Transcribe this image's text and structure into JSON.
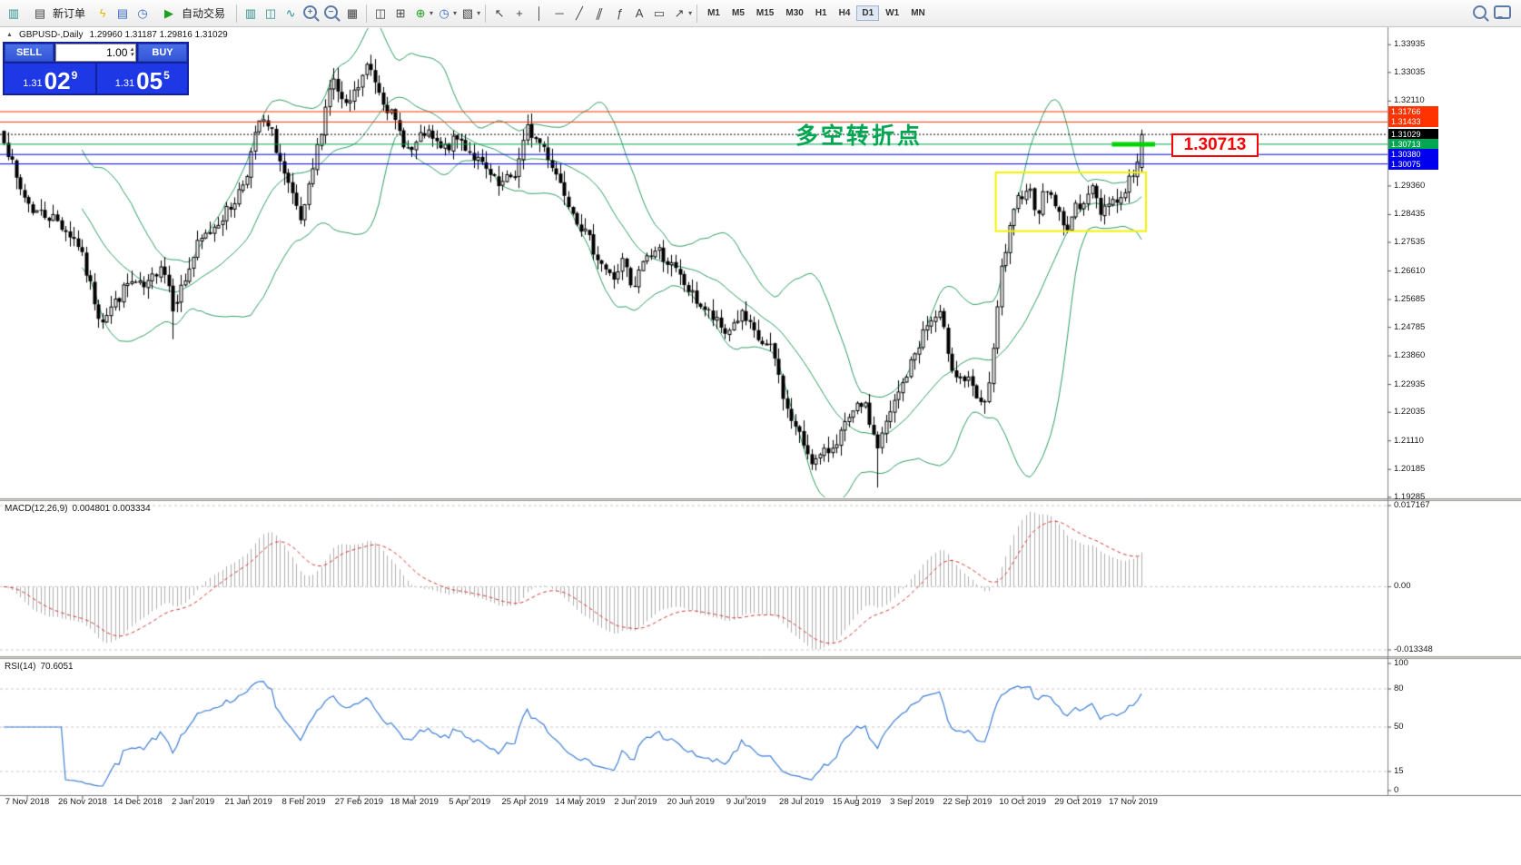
{
  "toolbar": {
    "new_order": "新订单",
    "auto_trading": "自动交易",
    "timeframes": [
      "M1",
      "M5",
      "M15",
      "M30",
      "H1",
      "H4",
      "D1",
      "W1",
      "MN"
    ],
    "active_timeframe": "D1"
  },
  "header": {
    "symbol": "GBPUSD-,Daily",
    "ohlc": "1.29960 1.31187 1.29816 1.31029"
  },
  "trade_panel": {
    "sell_label": "SELL",
    "buy_label": "BUY",
    "volume": "1.00",
    "sell_price": {
      "prefix": "1.31",
      "big": "02",
      "sup": "9"
    },
    "buy_price": {
      "prefix": "1.31",
      "big": "05",
      "sup": "5"
    }
  },
  "annotation": {
    "text": "多空转折点",
    "color": "#00a651"
  },
  "callout": {
    "text": "1.30713",
    "color": "#ff0000"
  },
  "price_axis": {
    "ticks": [
      "1.33935",
      "1.33035",
      "1.32110",
      "1.29360",
      "1.28435",
      "1.27535",
      "1.26610",
      "1.25685",
      "1.24785",
      "1.23860",
      "1.22935",
      "1.22035",
      "1.21110",
      "1.20185",
      "1.19285"
    ]
  },
  "hlines": [
    {
      "price": 1.31766,
      "label": "1.31766",
      "color": "#ff3300",
      "style": "solid"
    },
    {
      "price": 1.31433,
      "label": "1.31433",
      "color": "#ff3300",
      "style": "solid"
    },
    {
      "price": 1.31029,
      "label": "1.31029",
      "color": "#000000",
      "style": "dot"
    },
    {
      "price": 1.30713,
      "label": "1.30713",
      "color": "#00a651",
      "style": "solid"
    },
    {
      "price": 1.3038,
      "label": "1.30380",
      "color": "#0000ee",
      "style": "solid"
    },
    {
      "price": 1.30075,
      "label": "1.30075",
      "color": "#0000ee",
      "style": "solid"
    }
  ],
  "highlight": {
    "price": 1.30713,
    "frac_start": 0.974,
    "frac_end": 1.012,
    "color": "#00d400"
  },
  "ybox": {
    "frac_start": 0.872,
    "frac_end": 1.004,
    "price_top": 1.298,
    "price_bottom": 1.279,
    "color": "#f2f200"
  },
  "macd": {
    "name": "MACD(12,26,9)",
    "values_text": "0.004801 0.003334",
    "scale": [
      "0.017167",
      "0.00",
      "-0.013348"
    ],
    "fast": 12,
    "slow": 26,
    "signal": 9
  },
  "rsi": {
    "name": "RSI(14)",
    "value": "70.6051",
    "scale": [
      "100",
      "80",
      "50",
      "15",
      "0"
    ],
    "levels": [
      80,
      50,
      15
    ],
    "period": 14
  },
  "time_axis": {
    "labels": [
      "7 Nov 2018",
      "26 Nov 2018",
      "14 Dec 2018",
      "2 Jan 2019",
      "21 Jan 2019",
      "8 Feb 2019",
      "27 Feb 2019",
      "18 Mar 2019",
      "5 Apr 2019",
      "25 Apr 2019",
      "14 May 2019",
      "2 Jun 2019",
      "20 Jun 2019",
      "9 Jul 2019",
      "28 Jul 2019",
      "15 Aug 2019",
      "3 Sep 2019",
      "22 Sep 2019",
      "10 Oct 2019",
      "29 Oct 2019",
      "17 Nov 2019"
    ]
  },
  "chart_data": {
    "type": "candlestick",
    "symbol": "GBPUSD",
    "timeframe": "Daily",
    "candle_count": 277,
    "y_range": [
      1.1925,
      1.345
    ],
    "last_ohlc": {
      "open": 1.2996,
      "high": 1.31187,
      "low": 1.29816,
      "close": 1.31029
    },
    "bollinger_period": 20,
    "price_keypoints": [
      [
        0.0,
        1.3095
      ],
      [
        0.012,
        1.294
      ],
      [
        0.025,
        1.286
      ],
      [
        0.045,
        1.283
      ],
      [
        0.065,
        1.275
      ],
      [
        0.085,
        1.25
      ],
      [
        0.098,
        1.256
      ],
      [
        0.11,
        1.2625
      ],
      [
        0.125,
        1.26
      ],
      [
        0.138,
        1.269
      ],
      [
        0.15,
        1.256
      ],
      [
        0.158,
        1.262
      ],
      [
        0.17,
        1.274
      ],
      [
        0.185,
        1.281
      ],
      [
        0.2,
        1.287
      ],
      [
        0.212,
        1.296
      ],
      [
        0.225,
        1.315
      ],
      [
        0.235,
        1.311
      ],
      [
        0.248,
        1.295
      ],
      [
        0.262,
        1.281
      ],
      [
        0.275,
        1.305
      ],
      [
        0.288,
        1.329
      ],
      [
        0.3,
        1.318
      ],
      [
        0.312,
        1.326
      ],
      [
        0.32,
        1.333
      ],
      [
        0.332,
        1.323
      ],
      [
        0.345,
        1.313
      ],
      [
        0.357,
        1.304
      ],
      [
        0.37,
        1.311
      ],
      [
        0.385,
        1.305
      ],
      [
        0.4,
        1.309
      ],
      [
        0.418,
        1.301
      ],
      [
        0.435,
        1.293
      ],
      [
        0.45,
        1.298
      ],
      [
        0.46,
        1.312
      ],
      [
        0.475,
        1.306
      ],
      [
        0.49,
        1.294
      ],
      [
        0.505,
        1.282
      ],
      [
        0.52,
        1.272
      ],
      [
        0.535,
        1.263
      ],
      [
        0.545,
        1.27
      ],
      [
        0.552,
        1.258
      ],
      [
        0.562,
        1.27
      ],
      [
        0.575,
        1.273
      ],
      [
        0.59,
        1.266
      ],
      [
        0.605,
        1.258
      ],
      [
        0.62,
        1.252
      ],
      [
        0.634,
        1.246
      ],
      [
        0.648,
        1.252
      ],
      [
        0.662,
        1.244
      ],
      [
        0.676,
        1.24
      ],
      [
        0.688,
        1.221
      ],
      [
        0.7,
        1.212
      ],
      [
        0.712,
        1.204
      ],
      [
        0.725,
        1.208
      ],
      [
        0.74,
        1.216
      ],
      [
        0.755,
        1.224
      ],
      [
        0.768,
        1.209
      ],
      [
        0.78,
        1.221
      ],
      [
        0.795,
        1.234
      ],
      [
        0.81,
        1.248
      ],
      [
        0.822,
        1.252
      ],
      [
        0.835,
        1.233
      ],
      [
        0.848,
        1.23
      ],
      [
        0.86,
        1.221
      ],
      [
        0.868,
        1.233
      ],
      [
        0.876,
        1.265
      ],
      [
        0.884,
        1.279
      ],
      [
        0.892,
        1.29
      ],
      [
        0.9,
        1.294
      ],
      [
        0.908,
        1.285
      ],
      [
        0.916,
        1.293
      ],
      [
        0.924,
        1.288
      ],
      [
        0.932,
        1.279
      ],
      [
        0.94,
        1.285
      ],
      [
        0.948,
        1.289
      ],
      [
        0.956,
        1.293
      ],
      [
        0.964,
        1.285
      ],
      [
        0.972,
        1.29
      ],
      [
        0.98,
        1.288
      ],
      [
        0.988,
        1.295
      ],
      [
        0.996,
        1.2995
      ],
      [
        1.0,
        1.3103
      ]
    ]
  }
}
